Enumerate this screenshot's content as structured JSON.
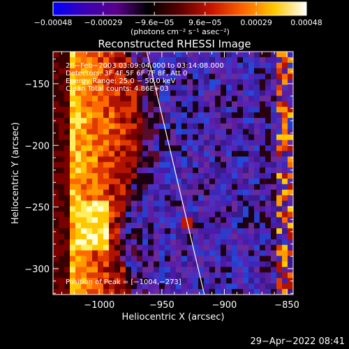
{
  "colorbar": {
    "tick_labels": [
      "−0.00048",
      "−0.00029",
      "−9.6e−05",
      "9.6e−05",
      "0.00029",
      "0.00048"
    ],
    "tick_values": [
      -0.00048,
      -0.00029,
      -9.6e-05,
      9.6e-05,
      0.00029,
      0.00048
    ],
    "range": [
      -0.00048,
      0.00048
    ],
    "unit_label": "(photons cm⁻² s⁻¹ asec⁻²)",
    "colors": [
      "#0000ff",
      "#3c00b4",
      "#5a008c",
      "#000000",
      "#5a0000",
      "#c81400",
      "#ff6400",
      "#ffc800",
      "#ffffff"
    ]
  },
  "chart_data": {
    "type": "heatmap",
    "title": "Reconstructed RHESSI Image",
    "xlabel": "Heliocentric X (arcsec)",
    "ylabel": "Heliocentric Y (arcsec)",
    "xlim": [
      -1037,
      -845
    ],
    "ylim": [
      -321,
      -124
    ],
    "x_ticks": [
      -1000,
      -950,
      -900,
      -850
    ],
    "x_tick_labels": [
      "−1000",
      "−950",
      "−900",
      "−850"
    ],
    "y_ticks": [
      -150,
      -200,
      -250,
      -300
    ],
    "y_tick_labels": [
      "−150",
      "−200",
      "−250",
      "−300"
    ],
    "grid": false,
    "limb_line": {
      "x": [
        -962,
        -916
      ],
      "y": [
        -124,
        -321
      ]
    },
    "annotations": [
      "28−Feb−2003 03:09:04.000 to 03:14:08.000",
      "Detectors: 3F 4F 5F 6F 7F 8F, Att 0",
      "Energy Range: 25.0 − 50.0 keV",
      "Clean    Total counts: 4.86E+03"
    ],
    "peak_label": "Position of Peak = [−1004,−273]",
    "peak": [
      -1004,
      -273
    ]
  },
  "timestamp": "29−Apr−2022 08:41"
}
